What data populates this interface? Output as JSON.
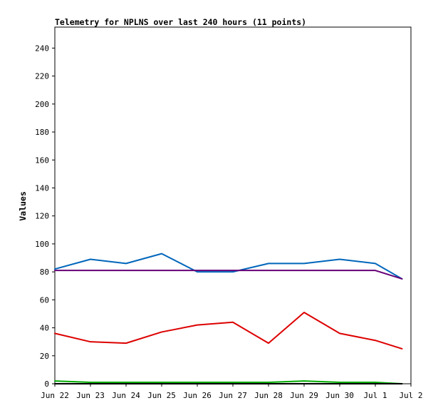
{
  "chart_data": {
    "type": "line",
    "title": "Telemetry for NPLNS over last 240 hours (11 points)",
    "xlabel": "",
    "ylabel": "Values",
    "x": [
      "2023-06-22",
      "2023-06-23",
      "2023-06-24",
      "2023-06-25",
      "2023-06-26",
      "2023-06-27",
      "2023-06-28",
      "2023-06-29",
      "2023-06-30",
      "2023-07-01",
      "2023-07-02"
    ],
    "x_tick_labels": [
      "Jun 22",
      "Jun 23",
      "Jun 24",
      "Jun 25",
      "Jun 26",
      "Jun 27",
      "Jun 28",
      "Jun 29",
      "Jun 30",
      "Jul 1",
      "Jul 2"
    ],
    "y_ticks": [
      0,
      20,
      40,
      60,
      80,
      100,
      120,
      140,
      160,
      180,
      200,
      220,
      240
    ],
    "xlim": [
      "2023-06-22",
      "2023-07-02"
    ],
    "ylim": [
      0,
      255
    ],
    "grid": false,
    "legend": "none",
    "series": [
      {
        "color": "#0066bb",
        "points": [
          [
            "2023-06-22",
            82
          ],
          [
            "2023-06-23",
            89
          ],
          [
            "2023-06-24",
            86
          ],
          [
            "2023-06-25",
            93
          ],
          [
            "2023-06-26",
            80
          ],
          [
            "2023-06-27",
            80
          ],
          [
            "2023-06-28",
            86
          ],
          [
            "2023-06-29",
            86
          ],
          [
            "2023-06-30",
            89
          ],
          [
            "2023-07-01",
            86
          ],
          [
            "2023-07-01T18:00",
            75
          ]
        ]
      },
      {
        "color": "#660077",
        "points": [
          [
            "2023-06-22",
            81
          ],
          [
            "2023-06-23",
            81
          ],
          [
            "2023-06-24",
            81
          ],
          [
            "2023-06-25",
            81
          ],
          [
            "2023-06-26",
            81
          ],
          [
            "2023-06-27",
            81
          ],
          [
            "2023-06-28",
            81
          ],
          [
            "2023-06-29",
            81
          ],
          [
            "2023-06-30",
            81
          ],
          [
            "2023-07-01",
            81
          ],
          [
            "2023-07-01T18:00",
            75
          ]
        ]
      },
      {
        "color": "#dd0000",
        "points": [
          [
            "2023-06-22",
            36
          ],
          [
            "2023-06-23",
            30
          ],
          [
            "2023-06-24",
            29
          ],
          [
            "2023-06-25",
            37
          ],
          [
            "2023-06-26",
            42
          ],
          [
            "2023-06-27",
            44
          ],
          [
            "2023-06-28",
            29
          ],
          [
            "2023-06-29",
            51
          ],
          [
            "2023-06-30",
            36
          ],
          [
            "2023-07-01",
            31
          ],
          [
            "2023-07-01T18:00",
            25
          ]
        ]
      },
      {
        "color": "#00aa00",
        "points": [
          [
            "2023-06-22",
            2
          ],
          [
            "2023-06-23",
            1
          ],
          [
            "2023-06-24",
            1
          ],
          [
            "2023-06-25",
            1
          ],
          [
            "2023-06-26",
            1
          ],
          [
            "2023-06-27",
            1
          ],
          [
            "2023-06-28",
            1
          ],
          [
            "2023-06-29",
            2
          ],
          [
            "2023-06-30",
            1
          ],
          [
            "2023-07-01",
            1
          ],
          [
            "2023-07-01T18:00",
            0
          ]
        ]
      },
      {
        "color": "#000000",
        "points": [
          [
            "2023-06-22",
            0
          ],
          [
            "2023-06-23",
            0
          ],
          [
            "2023-06-24",
            0
          ],
          [
            "2023-06-25",
            0
          ],
          [
            "2023-06-26",
            0
          ],
          [
            "2023-06-27",
            0
          ],
          [
            "2023-06-28",
            0
          ],
          [
            "2023-06-29",
            0
          ],
          [
            "2023-06-30",
            0
          ],
          [
            "2023-07-01",
            0
          ],
          [
            "2023-07-01T18:00",
            0
          ]
        ]
      }
    ]
  }
}
